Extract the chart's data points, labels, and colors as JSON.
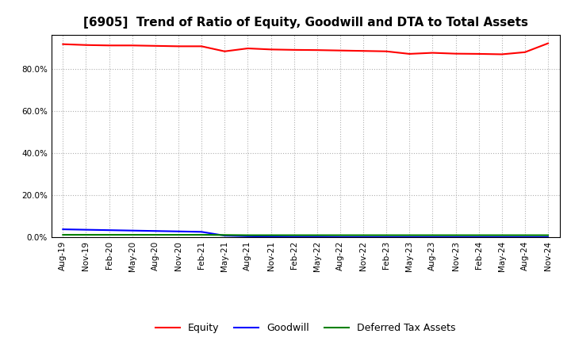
{
  "title": "[6905]  Trend of Ratio of Equity, Goodwill and DTA to Total Assets",
  "x_labels": [
    "Aug-19",
    "Nov-19",
    "Feb-20",
    "May-20",
    "Aug-20",
    "Nov-20",
    "Feb-21",
    "May-21",
    "Aug-21",
    "Nov-21",
    "Feb-22",
    "May-22",
    "Aug-22",
    "Nov-22",
    "Feb-23",
    "May-23",
    "Aug-23",
    "Nov-23",
    "Feb-24",
    "May-24",
    "Aug-24",
    "Nov-24"
  ],
  "equity": [
    0.916,
    0.912,
    0.91,
    0.91,
    0.908,
    0.906,
    0.906,
    0.882,
    0.896,
    0.891,
    0.889,
    0.888,
    0.886,
    0.884,
    0.882,
    0.87,
    0.875,
    0.871,
    0.87,
    0.868,
    0.878,
    0.92
  ],
  "goodwill": [
    0.038,
    0.036,
    0.034,
    0.032,
    0.03,
    0.028,
    0.026,
    0.008,
    0.005,
    0.004,
    0.003,
    0.003,
    0.002,
    0.002,
    0.002,
    0.002,
    0.002,
    0.002,
    0.002,
    0.002,
    0.002,
    0.002
  ],
  "dta": [
    0.012,
    0.012,
    0.012,
    0.012,
    0.012,
    0.012,
    0.012,
    0.011,
    0.01,
    0.01,
    0.01,
    0.01,
    0.01,
    0.01,
    0.01,
    0.01,
    0.01,
    0.01,
    0.01,
    0.01,
    0.01,
    0.01
  ],
  "equity_color": "#ff0000",
  "goodwill_color": "#0000ff",
  "dta_color": "#008000",
  "ylim": [
    0.0,
    0.96
  ],
  "yticks": [
    0.0,
    0.2,
    0.4,
    0.6,
    0.8
  ],
  "background_color": "#ffffff",
  "plot_bg_color": "#ffffff",
  "grid_color": "#b0b0b0",
  "legend_labels": [
    "Equity",
    "Goodwill",
    "Deferred Tax Assets"
  ],
  "title_fontsize": 11,
  "tick_fontsize": 7.5,
  "legend_fontsize": 9
}
